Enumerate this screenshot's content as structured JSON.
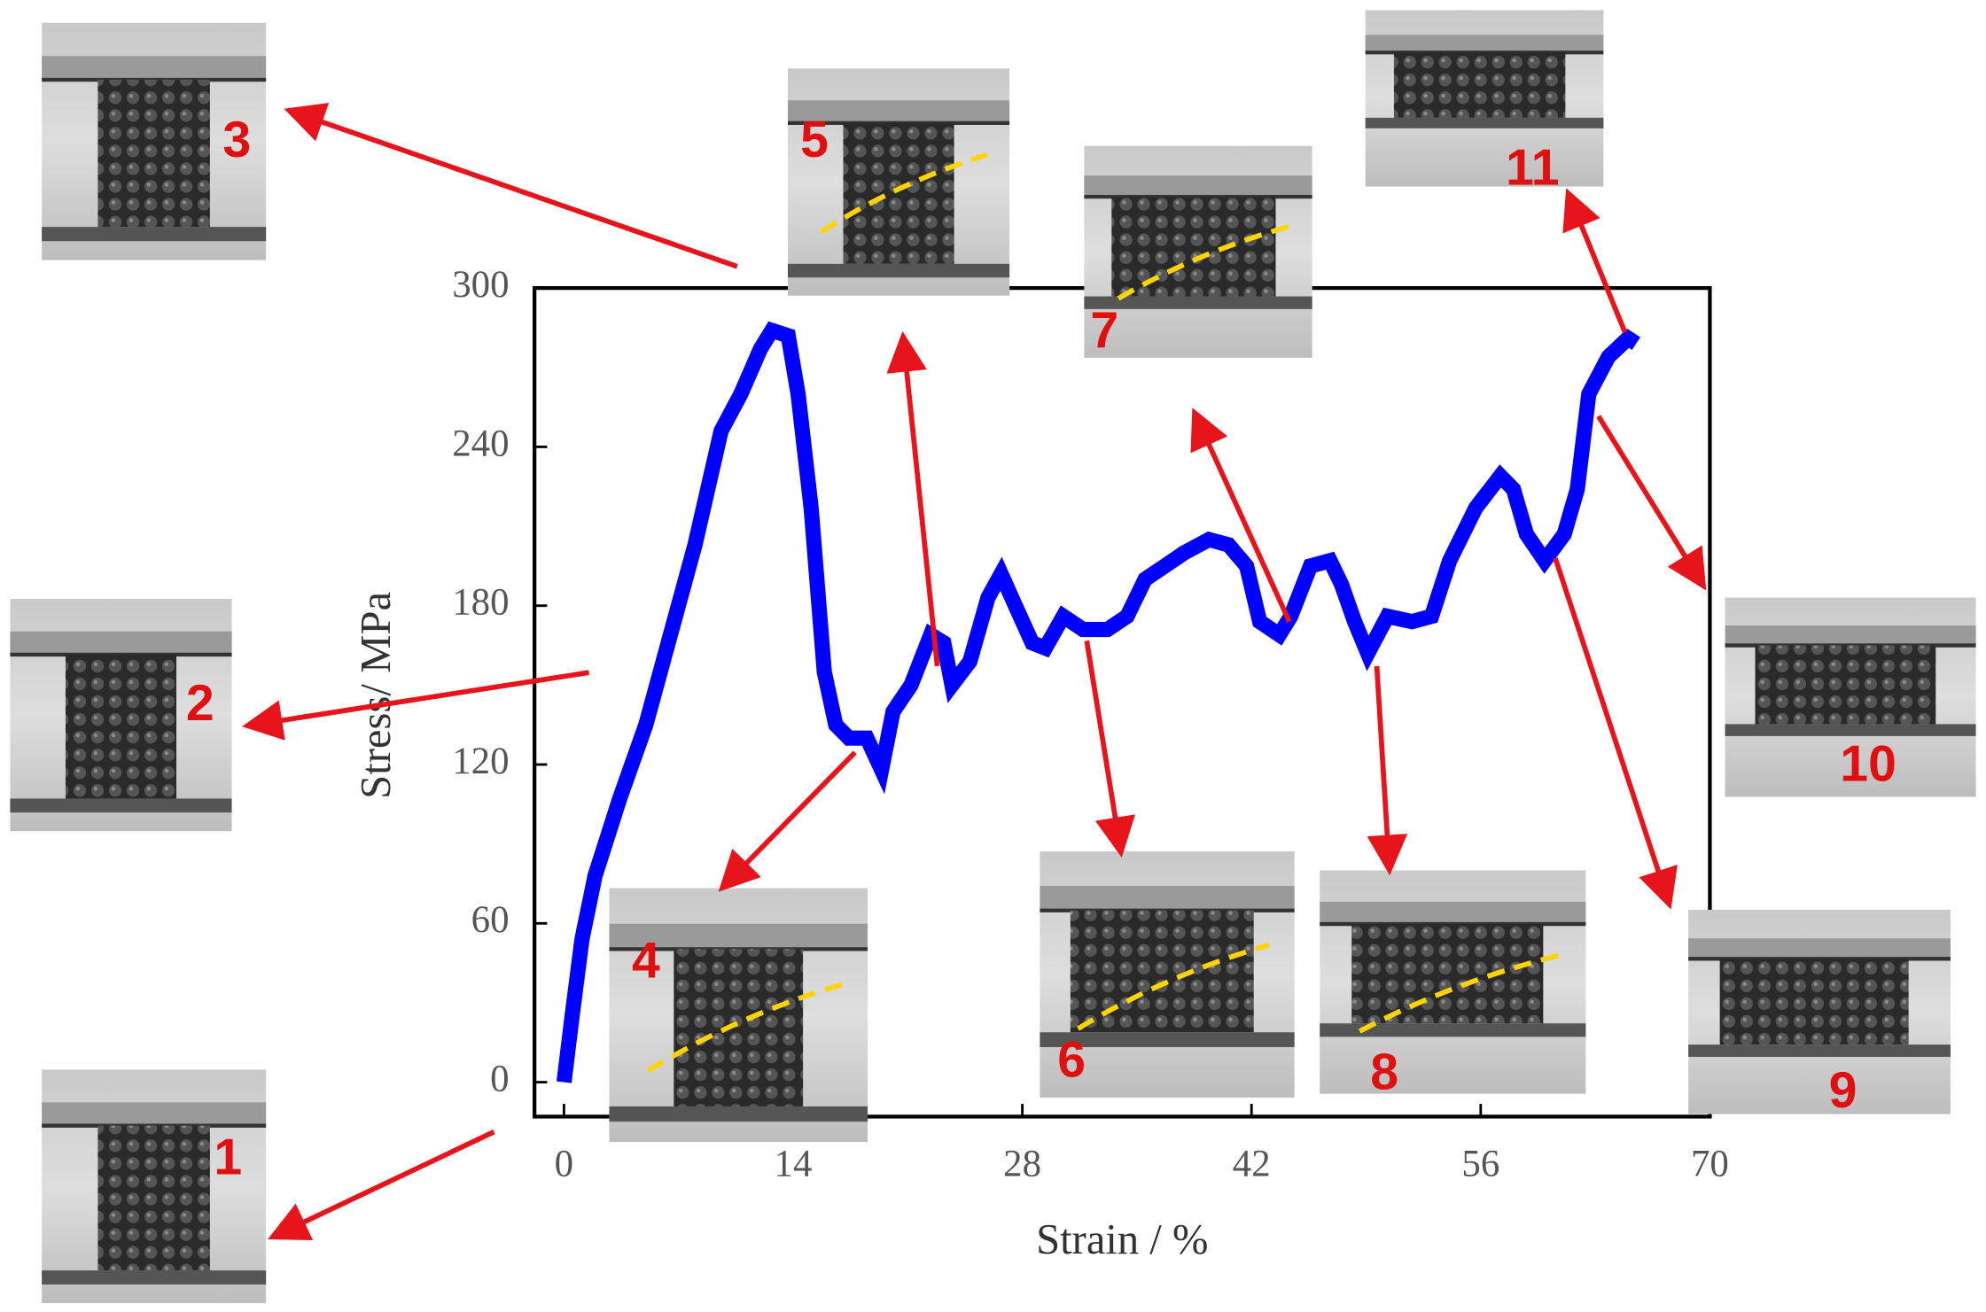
{
  "chart_data": {
    "type": "line",
    "x_label": "Strain / %",
    "y_label": "Stress/ MPa",
    "x": [
      0,
      0.5,
      1.1,
      1.9,
      3.4,
      5,
      6.5,
      8,
      9.6,
      10.8,
      12,
      12.7,
      13.7,
      14.3,
      15.1,
      15.9,
      16.6,
      17.4,
      18.5,
      19.4,
      20.1,
      21.2,
      22.4,
      23.2,
      23.7,
      24.8,
      25.9,
      26.7,
      27.5,
      28.6,
      29.4,
      30.5,
      31.7,
      33.2,
      34.4,
      35.5,
      36.7,
      37.9,
      39.4,
      40.6,
      41.7,
      42.5,
      43.7,
      44.4,
      45.6,
      46.8,
      47.5,
      48.3,
      49.1,
      50.3,
      51.8,
      53,
      54.1,
      55.7,
      57.2,
      58,
      58.8,
      59.9,
      61.1,
      61.9,
      62.6,
      63.8,
      65,
      65.5
    ],
    "y": [
      0,
      25,
      54,
      78,
      107,
      135,
      169,
      203,
      246,
      260,
      277,
      284,
      282,
      260,
      217,
      155,
      135,
      130,
      130,
      118,
      140,
      150,
      169,
      166,
      150,
      159,
      183,
      192,
      181,
      166,
      164,
      176,
      171,
      171,
      176,
      190,
      195,
      200,
      205,
      203,
      195,
      174,
      169,
      176,
      195,
      197,
      188,
      174,
      162,
      176,
      174,
      176,
      197,
      217,
      229,
      224,
      207,
      197,
      207,
      224,
      260,
      274,
      281,
      279
    ],
    "color": "#0000ff",
    "xlim": [
      -1.8,
      70
    ],
    "xticks": [
      0,
      14,
      28,
      42,
      56,
      70
    ],
    "ylim": [
      -13,
      300
    ],
    "yticks": [
      0,
      60,
      120,
      180,
      240,
      300
    ],
    "grid": false,
    "annotations": [
      "1",
      "2",
      "3",
      "4",
      "5",
      "6",
      "7",
      "8",
      "9",
      "10",
      "11"
    ]
  }
}
